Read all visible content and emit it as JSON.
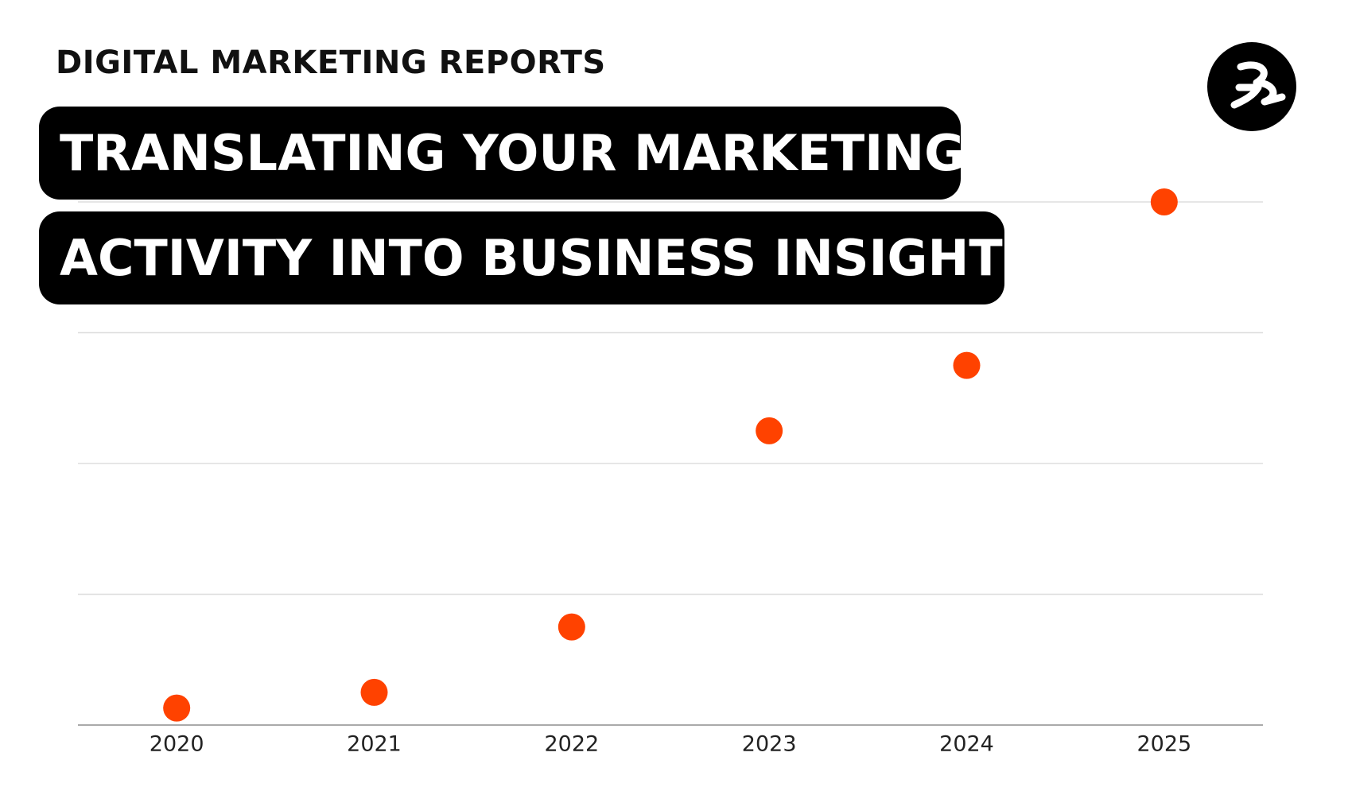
{
  "chart_data": {
    "type": "dot",
    "supertitle": "DIGITAL MARKETING REPORTS",
    "title_lines": [
      "TRANSLATING YOUR MARKETING",
      "ACTIVITY INTO BUSINESS INSIGHTS"
    ],
    "categories": [
      "2020",
      "2021",
      "2022",
      "2023",
      "2024",
      "2025"
    ],
    "values": [
      0.13,
      0.25,
      0.75,
      2.25,
      2.75,
      4.0
    ],
    "color": "#ff4200",
    "ylim": [
      0,
      4
    ],
    "yticks": [
      0,
      1,
      2,
      3,
      4
    ],
    "grid": true
  }
}
